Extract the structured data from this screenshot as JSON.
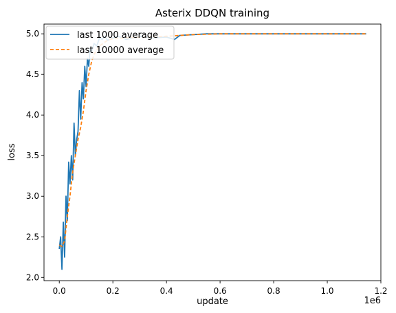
{
  "chart_data": {
    "type": "line",
    "title": "Asterix DDQN training",
    "xlabel": "update",
    "ylabel": "loss",
    "x_offset_label": "1e6",
    "xlim": [
      -0.057,
      1.2
    ],
    "ylim": [
      1.96,
      5.12
    ],
    "xticks": [
      0.0,
      0.2,
      0.4,
      0.6,
      0.8,
      1.0,
      1.2
    ],
    "xtick_labels": [
      "0.0",
      "0.2",
      "0.4",
      "0.6",
      "0.8",
      "1.0",
      "1.2"
    ],
    "yticks": [
      2.0,
      2.5,
      3.0,
      3.5,
      4.0,
      4.5,
      5.0
    ],
    "ytick_labels": [
      "2.0",
      "2.5",
      "3.0",
      "3.5",
      "4.0",
      "4.5",
      "5.0"
    ],
    "legend_position": "upper-left",
    "series": [
      {
        "name": "last 1000 average",
        "color": "#1f77b4",
        "style": "solid",
        "x": [
          0.0,
          0.005,
          0.01,
          0.015,
          0.02,
          0.025,
          0.03,
          0.035,
          0.04,
          0.045,
          0.05,
          0.055,
          0.06,
          0.065,
          0.07,
          0.075,
          0.08,
          0.085,
          0.09,
          0.095,
          0.1,
          0.105,
          0.11,
          0.115,
          0.12,
          0.13,
          0.14,
          0.15,
          0.16,
          0.17,
          0.18,
          0.2,
          0.22,
          0.25,
          0.3,
          0.35,
          0.4,
          0.43,
          0.45,
          0.5,
          0.55,
          0.6,
          0.7,
          0.8,
          0.9,
          1.0,
          1.1,
          1.145
        ],
        "y": [
          2.35,
          2.5,
          2.1,
          2.68,
          2.25,
          3.0,
          2.7,
          3.42,
          3.15,
          3.5,
          3.2,
          3.9,
          3.5,
          3.7,
          3.8,
          4.3,
          3.95,
          4.4,
          4.2,
          4.6,
          4.35,
          4.7,
          4.6,
          4.82,
          4.78,
          4.88,
          4.85,
          4.95,
          4.93,
          4.97,
          4.92,
          4.95,
          4.97,
          4.93,
          4.97,
          4.95,
          4.96,
          4.93,
          4.98,
          4.99,
          5.0,
          5.0,
          5.0,
          5.0,
          5.0,
          5.0,
          5.0,
          5.0
        ]
      },
      {
        "name": "last 10000 average",
        "color": "#ff7f0e",
        "style": "dashed",
        "x": [
          0.0,
          0.01,
          0.02,
          0.03,
          0.04,
          0.05,
          0.06,
          0.07,
          0.08,
          0.09,
          0.1,
          0.11,
          0.12,
          0.13,
          0.15,
          0.18,
          0.2,
          0.25,
          0.3,
          0.35,
          0.4,
          0.45,
          0.5,
          0.6,
          0.8,
          1.0,
          1.145
        ],
        "y": [
          2.4,
          2.38,
          2.45,
          2.75,
          3.0,
          3.3,
          3.5,
          3.7,
          3.85,
          4.05,
          4.3,
          4.5,
          4.65,
          4.75,
          4.85,
          4.92,
          4.94,
          4.95,
          4.96,
          4.96,
          4.97,
          4.98,
          4.99,
          5.0,
          5.0,
          5.0,
          5.0
        ]
      }
    ]
  }
}
